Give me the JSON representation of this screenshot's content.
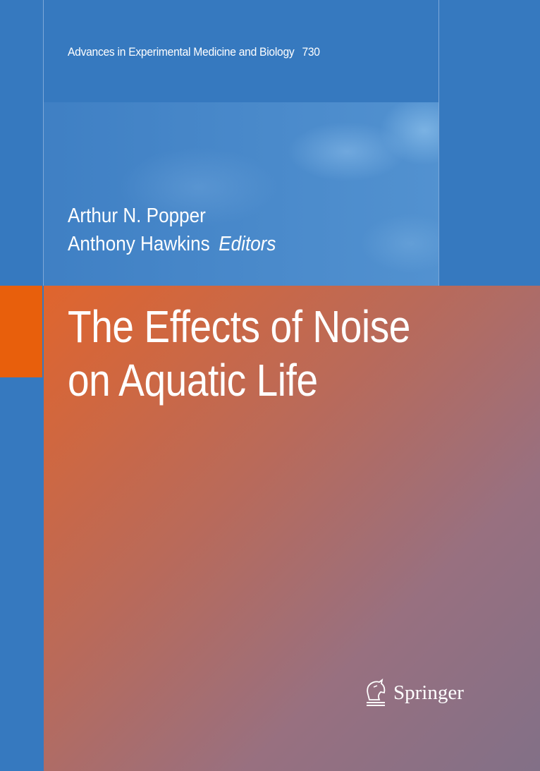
{
  "cover": {
    "series": "Advances in Experimental Medicine and Biology",
    "volume": "730",
    "editors": [
      "Arthur N. Popper",
      "Anthony Hawkins"
    ],
    "editors_role": "Editors",
    "title_lines": [
      "The Effects of Noise",
      "on Aquatic Life"
    ],
    "publisher": "Springer",
    "publisher_logo_icon": "springer-horse-icon",
    "colors": {
      "background": "#3679bf",
      "accent_tab": "#e85f0c",
      "gradient_start": "#e0652d",
      "gradient_end": "#827087"
    }
  }
}
